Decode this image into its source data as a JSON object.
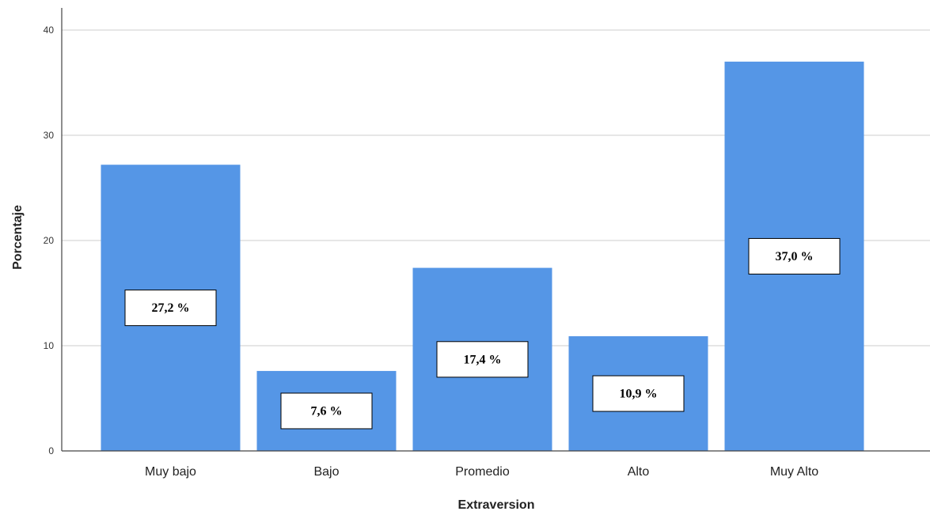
{
  "chart_data": {
    "type": "bar",
    "categories": [
      "Muy bajo",
      "Bajo",
      "Promedio",
      "Alto",
      "Muy Alto"
    ],
    "values": [
      27.2,
      7.6,
      17.4,
      10.9,
      37.0
    ],
    "data_labels": [
      "27,2 %",
      "7,6 %",
      "17,4 %",
      "10,9 %",
      "37,0 %"
    ],
    "xlabel": "Extraversion",
    "ylabel": "Porcentaje",
    "ylim": [
      0,
      40
    ],
    "yticks": [
      0,
      10,
      20,
      30,
      40
    ],
    "grid": true,
    "bar_color": "#5596e6"
  }
}
